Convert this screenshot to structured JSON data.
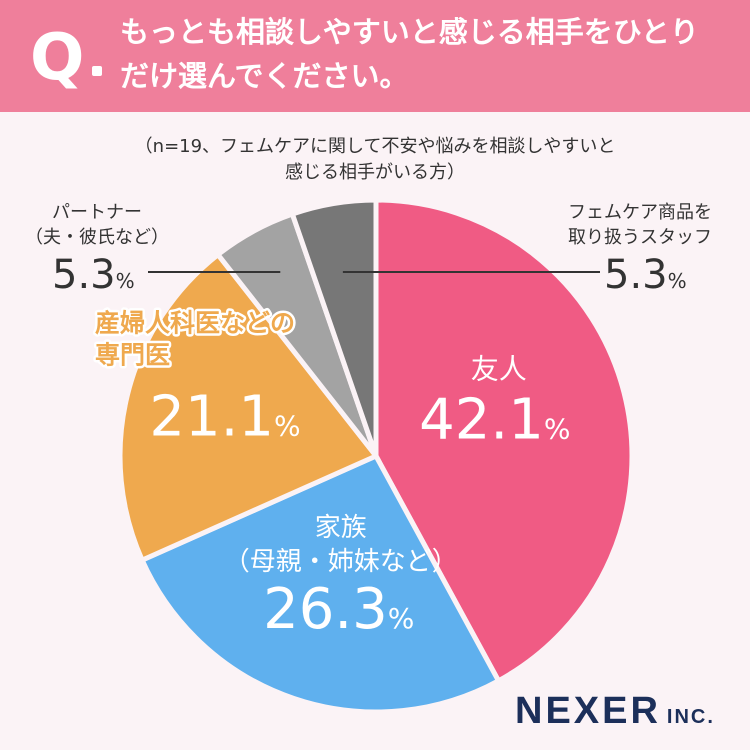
{
  "question": {
    "badge": "Q",
    "line1": "もっとも相談しやすいと感じる相手をひとり",
    "line2": "だけ選んでください。"
  },
  "chart_data": {
    "type": "pie",
    "note_line1": "（n=19、フェムケアに関して不安や悩みを相談しやすいと",
    "note_line2": "感じる相手がいる方）",
    "slices": [
      {
        "label": "友人",
        "label_lines": [
          "友人"
        ],
        "value": 42.1,
        "display": "42.1",
        "color": "#f05b84",
        "label_color": "#ffffff"
      },
      {
        "label": "家族（母親・姉妹など）",
        "label_lines": [
          "家族",
          "（母親・姉妹など）"
        ],
        "value": 26.3,
        "display": "26.3",
        "color": "#5fb0ee",
        "label_color": "#ffffff"
      },
      {
        "label": "産婦人科医などの専門医",
        "label_lines": [
          "産婦人科医などの",
          "専門医"
        ],
        "value": 21.1,
        "display": "21.1",
        "color": "#efa94e",
        "label_color": "#ffffff"
      },
      {
        "label": "パートナー（夫・彼氏など）",
        "label_lines": [
          "パートナー",
          "（夫・彼氏など）"
        ],
        "value": 5.3,
        "display": "5.3",
        "color": "#a3a3a3",
        "label_color": "#333333"
      },
      {
        "label": "フェムケア商品を取り扱うスタッフ",
        "label_lines": [
          "フェムケア商品を",
          "取り扱うスタッフ"
        ],
        "value": 5.3,
        "display": "5.3",
        "color": "#777777",
        "label_color": "#333333"
      }
    ],
    "unit": "%",
    "start": "top",
    "direction": "clockwise"
  },
  "brand": {
    "name": "NEXER",
    "suffix": "INC."
  }
}
